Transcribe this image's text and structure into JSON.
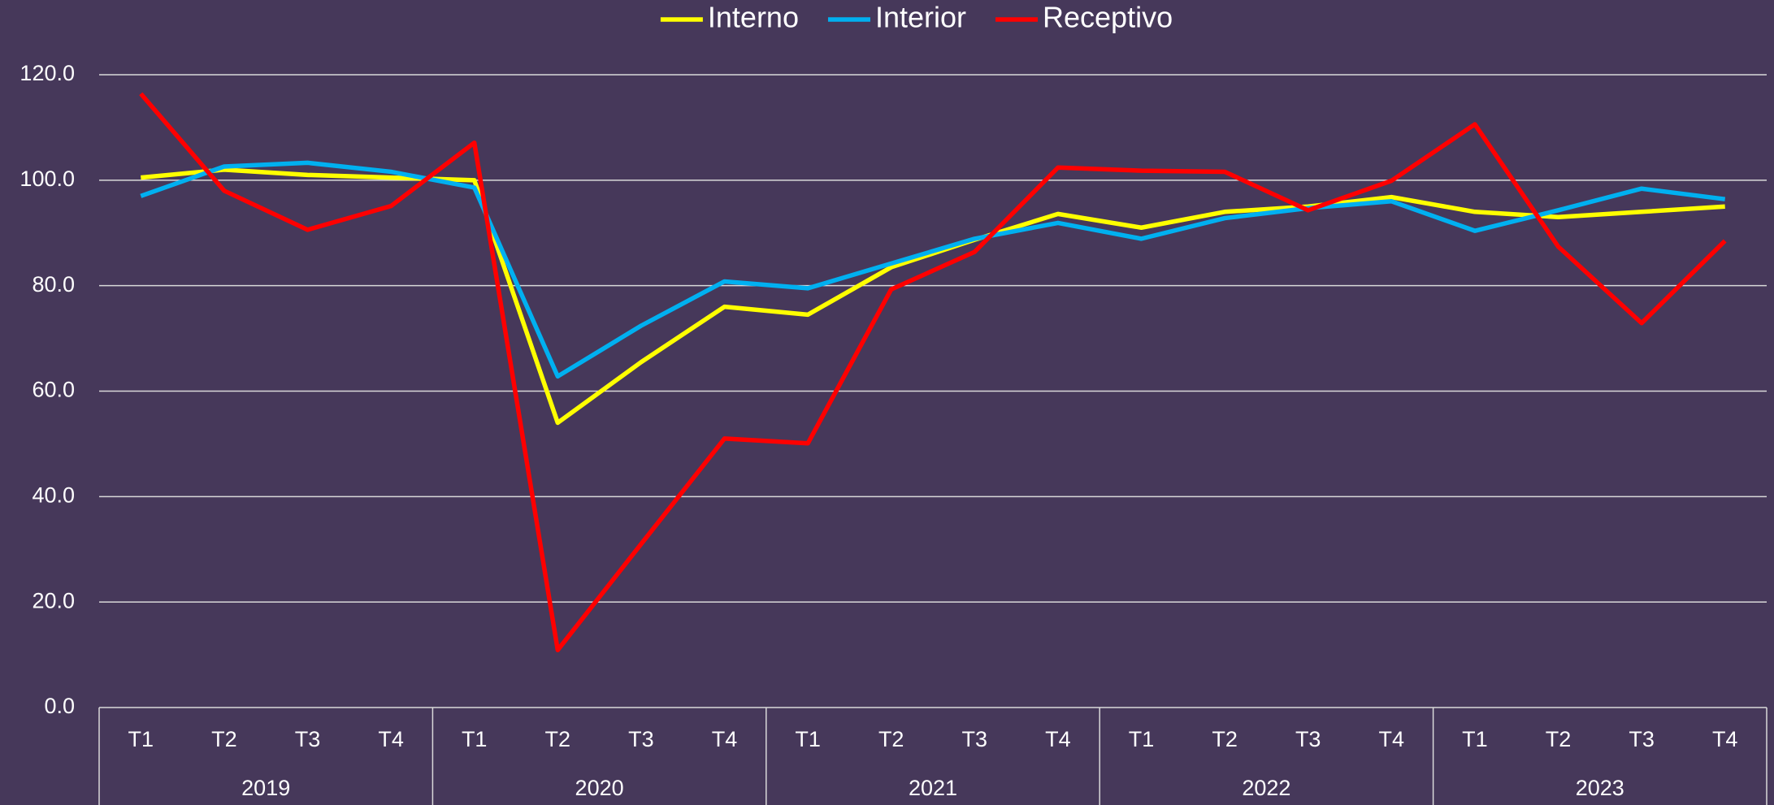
{
  "chart_data": {
    "type": "line",
    "categories": [
      "T1",
      "T2",
      "T3",
      "T4",
      "T1",
      "T2",
      "T3",
      "T4",
      "T1",
      "T2",
      "T3",
      "T4",
      "T1",
      "T2",
      "T3",
      "T4",
      "T1",
      "T2",
      "T3",
      "T4"
    ],
    "groups": [
      "2019",
      "2020",
      "2021",
      "2022",
      "2023"
    ],
    "series": [
      {
        "name": "Interno",
        "color": "#ffff00",
        "values": [
          100.5,
          102,
          101,
          100.5,
          100,
          54,
          65.5,
          76,
          74.5,
          83.5,
          88.7,
          93.6,
          91,
          94,
          95,
          96.8,
          94,
          93,
          94,
          95
        ]
      },
      {
        "name": "Interior",
        "color": "#00b0f0",
        "values": [
          97,
          102.6,
          103.3,
          101.6,
          98.6,
          62.8,
          72.4,
          80.8,
          79.5,
          84.2,
          88.9,
          91.9,
          88.9,
          92.8,
          94.7,
          96,
          90.4,
          94.3,
          98.4,
          96.4
        ]
      },
      {
        "name": "Receptivo",
        "color": "#ff0000",
        "values": [
          116.4,
          98,
          90.6,
          95.1,
          107.1,
          10.9,
          31,
          51,
          50.1,
          79.3,
          86.4,
          102.4,
          101.8,
          101.6,
          94.3,
          99.9,
          110.6,
          87.4,
          72.9,
          88.5
        ]
      }
    ],
    "ylim": [
      0,
      120
    ],
    "yticks": [
      {
        "value": 0,
        "label": "0.0"
      },
      {
        "value": 20,
        "label": "20.0"
      },
      {
        "value": 40,
        "label": "40.0"
      },
      {
        "value": 60,
        "label": "60.0"
      },
      {
        "value": 80,
        "label": "80.0"
      },
      {
        "value": 100,
        "label": "100.0"
      },
      {
        "value": 120,
        "label": "120.0"
      }
    ],
    "grid": true,
    "legend": "top"
  }
}
